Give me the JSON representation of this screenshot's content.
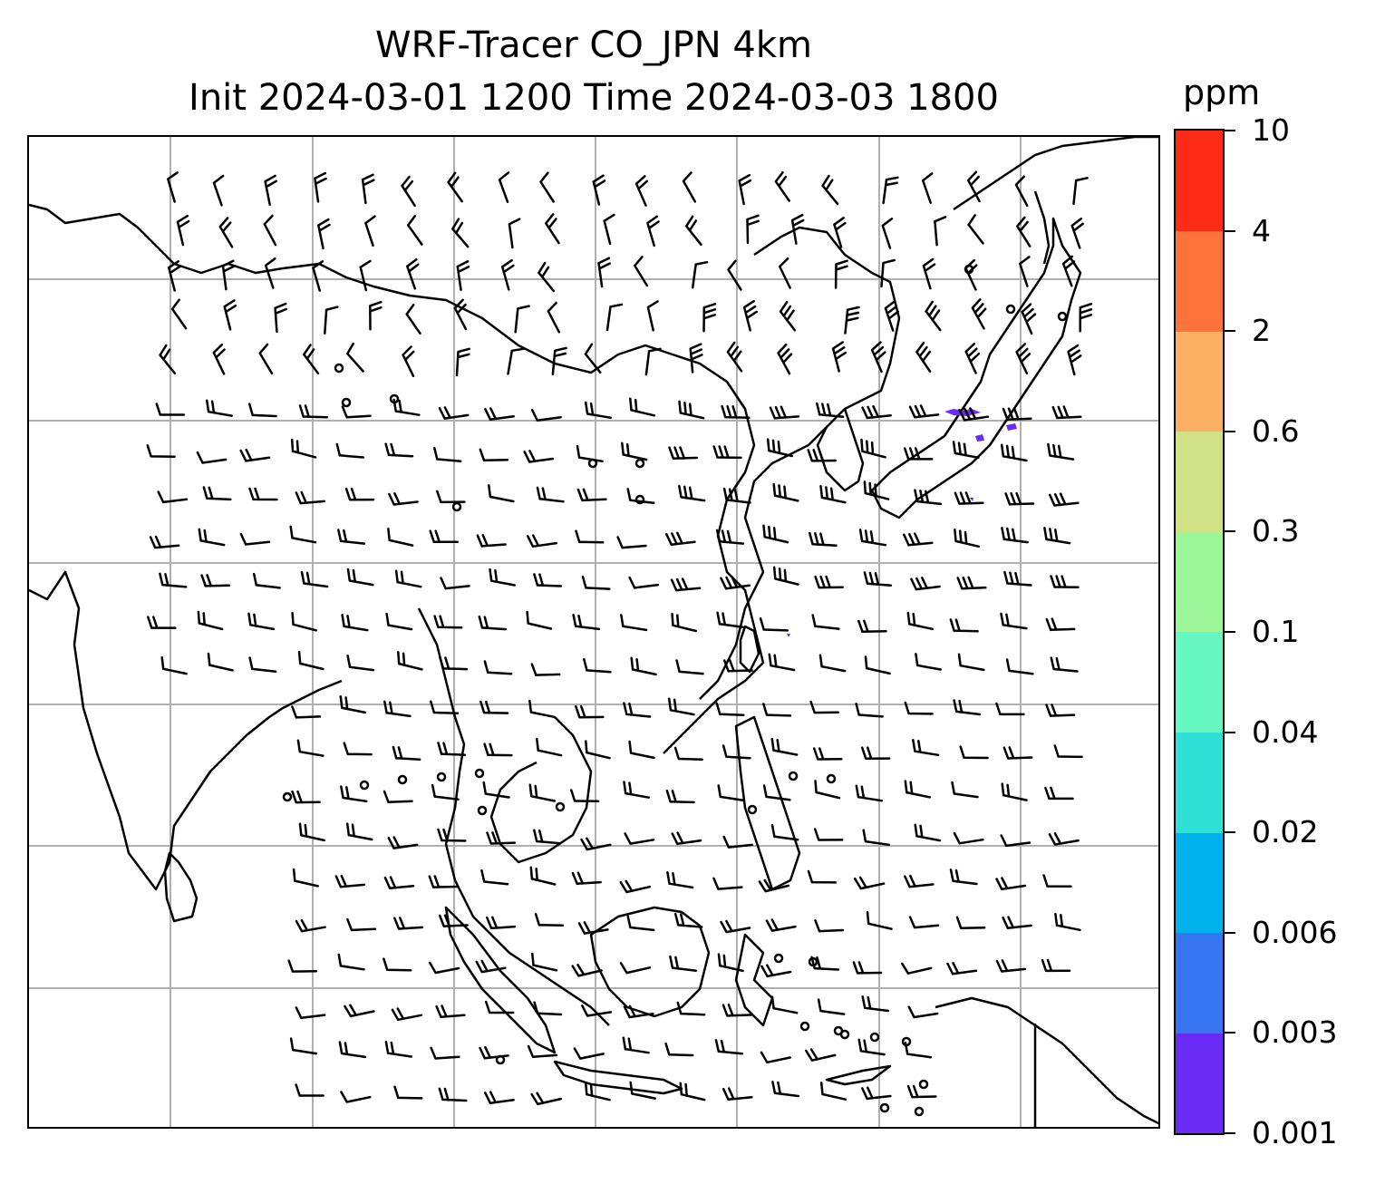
{
  "title": {
    "line1": "WRF-Tracer CO_JPN 4km",
    "line2": "Init 2024-03-01 1200 Time 2024-03-03 1800"
  },
  "colorbar": {
    "unit": "ppm",
    "levels": [
      "0.001",
      "0.003",
      "0.006",
      "0.02",
      "0.04",
      "0.1",
      "0.3",
      "0.6",
      "2",
      "4",
      "10"
    ],
    "colors": [
      "#6a2bf5",
      "#3875f0",
      "#00b2ec",
      "#30e0d6",
      "#66f8c0",
      "#9cf79a",
      "#d1e186",
      "#fcb063",
      "#fe733c",
      "#fe2b17"
    ]
  },
  "map": {
    "gridlines": true,
    "coastline_color": "#000000",
    "grid_color": "#b0b0b0",
    "tracer_color": "#6a2bf5"
  }
}
